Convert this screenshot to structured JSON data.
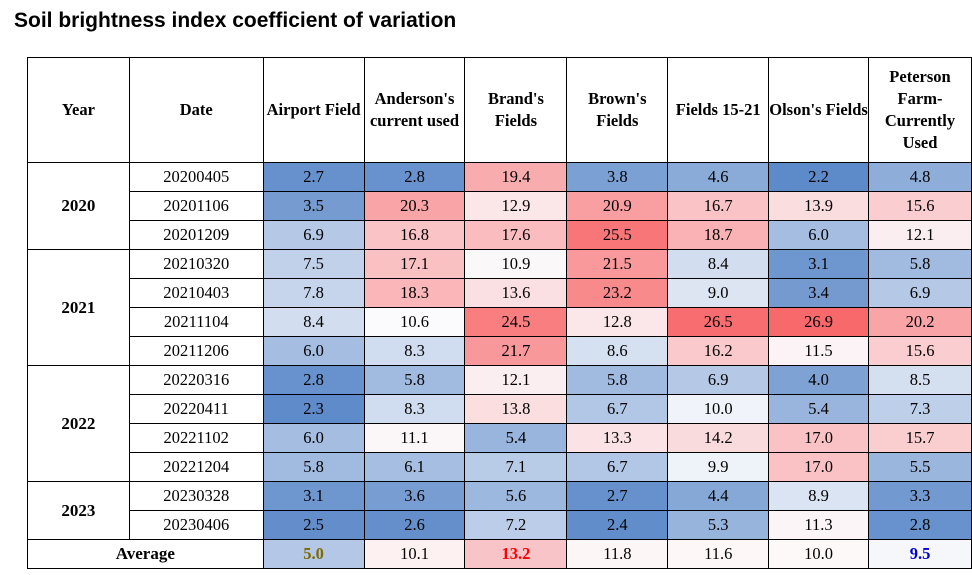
{
  "title": "Soil brightness index coefficient of variation",
  "headers": [
    "Year",
    "Date",
    "Airport Field",
    "Anderson's current used",
    "Brand's Fields",
    "Brown's Fields",
    "Fields 15-21",
    "Olson's Fields",
    "Peterson Farm-Currently Used"
  ],
  "years": [
    {
      "year": "2020",
      "rows": [
        {
          "date": "20200405",
          "values": [
            "2.7",
            "2.8",
            "19.4",
            "3.8",
            "4.6",
            "2.2",
            "4.8"
          ]
        },
        {
          "date": "20201106",
          "values": [
            "3.5",
            "20.3",
            "12.9",
            "20.9",
            "16.7",
            "13.9",
            "15.6"
          ]
        },
        {
          "date": "20201209",
          "values": [
            "6.9",
            "16.8",
            "17.6",
            "25.5",
            "18.7",
            "6.0",
            "12.1"
          ]
        }
      ]
    },
    {
      "year": "2021",
      "rows": [
        {
          "date": "20210320",
          "values": [
            "7.5",
            "17.1",
            "10.9",
            "21.5",
            "8.4",
            "3.1",
            "5.8"
          ]
        },
        {
          "date": "20210403",
          "values": [
            "7.8",
            "18.3",
            "13.6",
            "23.2",
            "9.0",
            "3.4",
            "6.9"
          ]
        },
        {
          "date": "20211104",
          "values": [
            "8.4",
            "10.6",
            "24.5",
            "12.8",
            "26.5",
            "26.9",
            "20.2"
          ]
        },
        {
          "date": "20211206",
          "values": [
            "6.0",
            "8.3",
            "21.7",
            "8.6",
            "16.2",
            "11.5",
            "15.6"
          ]
        }
      ]
    },
    {
      "year": "2022",
      "rows": [
        {
          "date": "20220316",
          "values": [
            "2.8",
            "5.8",
            "12.1",
            "5.8",
            "6.9",
            "4.0",
            "8.5"
          ]
        },
        {
          "date": "20220411",
          "values": [
            "2.3",
            "8.3",
            "13.8",
            "6.7",
            "10.0",
            "5.4",
            "7.3"
          ]
        },
        {
          "date": "20221102",
          "values": [
            "6.0",
            "11.1",
            "5.4",
            "13.3",
            "14.2",
            "17.0",
            "15.7"
          ]
        },
        {
          "date": "20221204",
          "values": [
            "5.8",
            "6.1",
            "7.1",
            "6.7",
            "9.9",
            "17.0",
            "5.5"
          ]
        }
      ]
    },
    {
      "year": "2023",
      "rows": [
        {
          "date": "20230328",
          "values": [
            "3.1",
            "3.6",
            "5.6",
            "2.7",
            "4.4",
            "8.9",
            "3.3"
          ]
        },
        {
          "date": "20230406",
          "values": [
            "2.5",
            "2.6",
            "7.2",
            "2.4",
            "5.3",
            "11.3",
            "2.8"
          ]
        }
      ]
    }
  ],
  "average": {
    "label": "Average",
    "values": [
      "5.0",
      "10.1",
      "13.2",
      "11.8",
      "11.6",
      "10.0",
      "9.5"
    ],
    "bold": [
      true,
      false,
      true,
      false,
      false,
      false,
      true
    ],
    "colors": [
      "#7a6a00",
      "#000000",
      "#ff0000",
      "#000000",
      "#000000",
      "#000000",
      "#0000cc"
    ],
    "fills": [
      "#b5c7e6",
      "#fdf1f2",
      "#f8c4c8",
      "#fdf6f7",
      "#fdf7f8",
      "#fef9f9",
      "#f5f7fb"
    ]
  },
  "colors": {
    "min_fill": "#5d8ac9",
    "mid_fill": "#fbfbfd",
    "max_fill": "#f8696b"
  }
}
